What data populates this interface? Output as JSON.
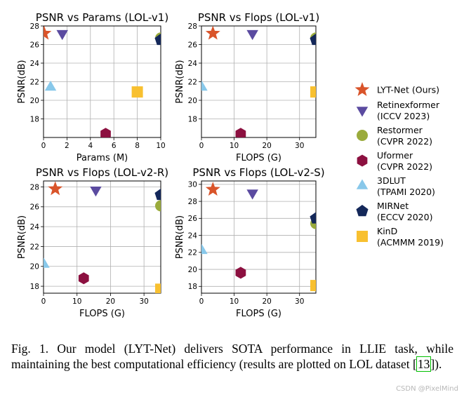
{
  "colors": {
    "LYT-Net": "#d9542a",
    "Retinexformer": "#5b4ba0",
    "Restormer": "#9aab3c",
    "Uformer": "#8c1040",
    "3DLUT": "#88c8ea",
    "MIRNet": "#14285a",
    "KinD": "#f8c030"
  },
  "legend": [
    {
      "key": "LYT-Net",
      "marker": "star",
      "line1": "LYT-Net (Ours)",
      "line2": ""
    },
    {
      "key": "Retinexformer",
      "marker": "tri-down",
      "line1": "Retinexformer",
      "line2": "(ICCV 2023)"
    },
    {
      "key": "Restormer",
      "marker": "circle",
      "line1": "Restormer",
      "line2": "(CVPR 2022)"
    },
    {
      "key": "Uformer",
      "marker": "hexagon",
      "line1": "Uformer",
      "line2": "(CVPR 2022)"
    },
    {
      "key": "3DLUT",
      "marker": "tri-up",
      "line1": "3DLUT",
      "line2": "(TPAMI 2020)"
    },
    {
      "key": "MIRNet",
      "marker": "pentagon",
      "line1": "MIRNet",
      "line2": "(ECCV 2020)"
    },
    {
      "key": "KinD",
      "marker": "square",
      "line1": "KinD",
      "line2": "(ACMMM 2019)"
    }
  ],
  "chart_data": [
    {
      "type": "scatter",
      "title": "PSNR vs Params (LOL-v1)",
      "xlabel": "Params (M)",
      "ylabel": "PSNR(dB)",
      "xlim": [
        0,
        10
      ],
      "ylim": [
        16,
        28
      ],
      "xticks": [
        0,
        2,
        4,
        6,
        8,
        10
      ],
      "yticks": [
        18,
        20,
        22,
        24,
        26,
        28
      ],
      "grid": true,
      "points": [
        {
          "model": "LYT-Net",
          "x": 0.05,
          "y": 27.2
        },
        {
          "model": "Retinexformer",
          "x": 1.6,
          "y": 27.2
        },
        {
          "model": "Restormer",
          "x": 10.0,
          "y": 26.7
        },
        {
          "model": "Uformer",
          "x": 5.3,
          "y": 16.4
        },
        {
          "model": "3DLUT",
          "x": 0.6,
          "y": 21.4
        },
        {
          "model": "MIRNet",
          "x": 10.0,
          "y": 26.5
        },
        {
          "model": "KinD",
          "x": 8.0,
          "y": 20.9
        }
      ]
    },
    {
      "type": "scatter",
      "title": "PSNR vs Flops (LOL-v1)",
      "xlabel": "FLOPS (G)",
      "ylabel": "PSNR(dB)",
      "xlim": [
        0,
        35
      ],
      "ylim": [
        16,
        28
      ],
      "xticks": [
        0,
        10,
        20,
        30
      ],
      "yticks": [
        18,
        20,
        22,
        24,
        26,
        28
      ],
      "grid": true,
      "points": [
        {
          "model": "LYT-Net",
          "x": 3.5,
          "y": 27.2
        },
        {
          "model": "Retinexformer",
          "x": 15.6,
          "y": 27.2
        },
        {
          "model": "Restormer",
          "x": 35.0,
          "y": 26.7
        },
        {
          "model": "Uformer",
          "x": 12.0,
          "y": 16.4
        },
        {
          "model": "3DLUT",
          "x": 0.1,
          "y": 21.4
        },
        {
          "model": "MIRNet",
          "x": 35.0,
          "y": 26.5
        },
        {
          "model": "KinD",
          "x": 35.0,
          "y": 20.9
        }
      ]
    },
    {
      "type": "scatter",
      "title": "PSNR vs Flops (LOL-v2-R)",
      "xlabel": "FLOPS (G)",
      "ylabel": "PSNR(dB)",
      "xlim": [
        0,
        35
      ],
      "ylim": [
        17.3,
        28.6
      ],
      "xticks": [
        0,
        10,
        20,
        30
      ],
      "yticks": [
        18,
        20,
        22,
        24,
        26,
        28
      ],
      "grid": true,
      "points": [
        {
          "model": "LYT-Net",
          "x": 3.5,
          "y": 27.8
        },
        {
          "model": "Retinexformer",
          "x": 15.6,
          "y": 27.7
        },
        {
          "model": "Restormer",
          "x": 35.0,
          "y": 26.1
        },
        {
          "model": "Uformer",
          "x": 12.0,
          "y": 18.8
        },
        {
          "model": "3DLUT",
          "x": 0.1,
          "y": 20.2
        },
        {
          "model": "MIRNet",
          "x": 35.0,
          "y": 27.2
        },
        {
          "model": "KinD",
          "x": 35.0,
          "y": 17.7
        }
      ]
    },
    {
      "type": "scatter",
      "title": "PSNR vs Flops (LOL-v2-S)",
      "xlabel": "FLOPS (G)",
      "ylabel": "PSNR(dB)",
      "xlim": [
        0,
        35
      ],
      "ylim": [
        17.2,
        30.4
      ],
      "xticks": [
        0,
        10,
        20,
        30
      ],
      "yticks": [
        18,
        20,
        22,
        24,
        26,
        28,
        30
      ],
      "grid": true,
      "points": [
        {
          "model": "LYT-Net",
          "x": 3.5,
          "y": 29.4
        },
        {
          "model": "Retinexformer",
          "x": 15.6,
          "y": 29.0
        },
        {
          "model": "Restormer",
          "x": 35.0,
          "y": 25.4
        },
        {
          "model": "Uformer",
          "x": 12.0,
          "y": 19.6
        },
        {
          "model": "3DLUT",
          "x": 0.1,
          "y": 22.2
        },
        {
          "model": "MIRNet",
          "x": 35.0,
          "y": 26.0
        },
        {
          "model": "KinD",
          "x": 35.0,
          "y": 18.1
        }
      ]
    }
  ],
  "caption": {
    "prefix": "Fig. 1.   Our model (LYT-Net) delivers SOTA performance in LLIE task, while maintaining the best computational efficiency (results are plotted on LOL dataset [",
    "ref": "13",
    "suffix": "])."
  },
  "watermark": "CSDN @PixelMind"
}
